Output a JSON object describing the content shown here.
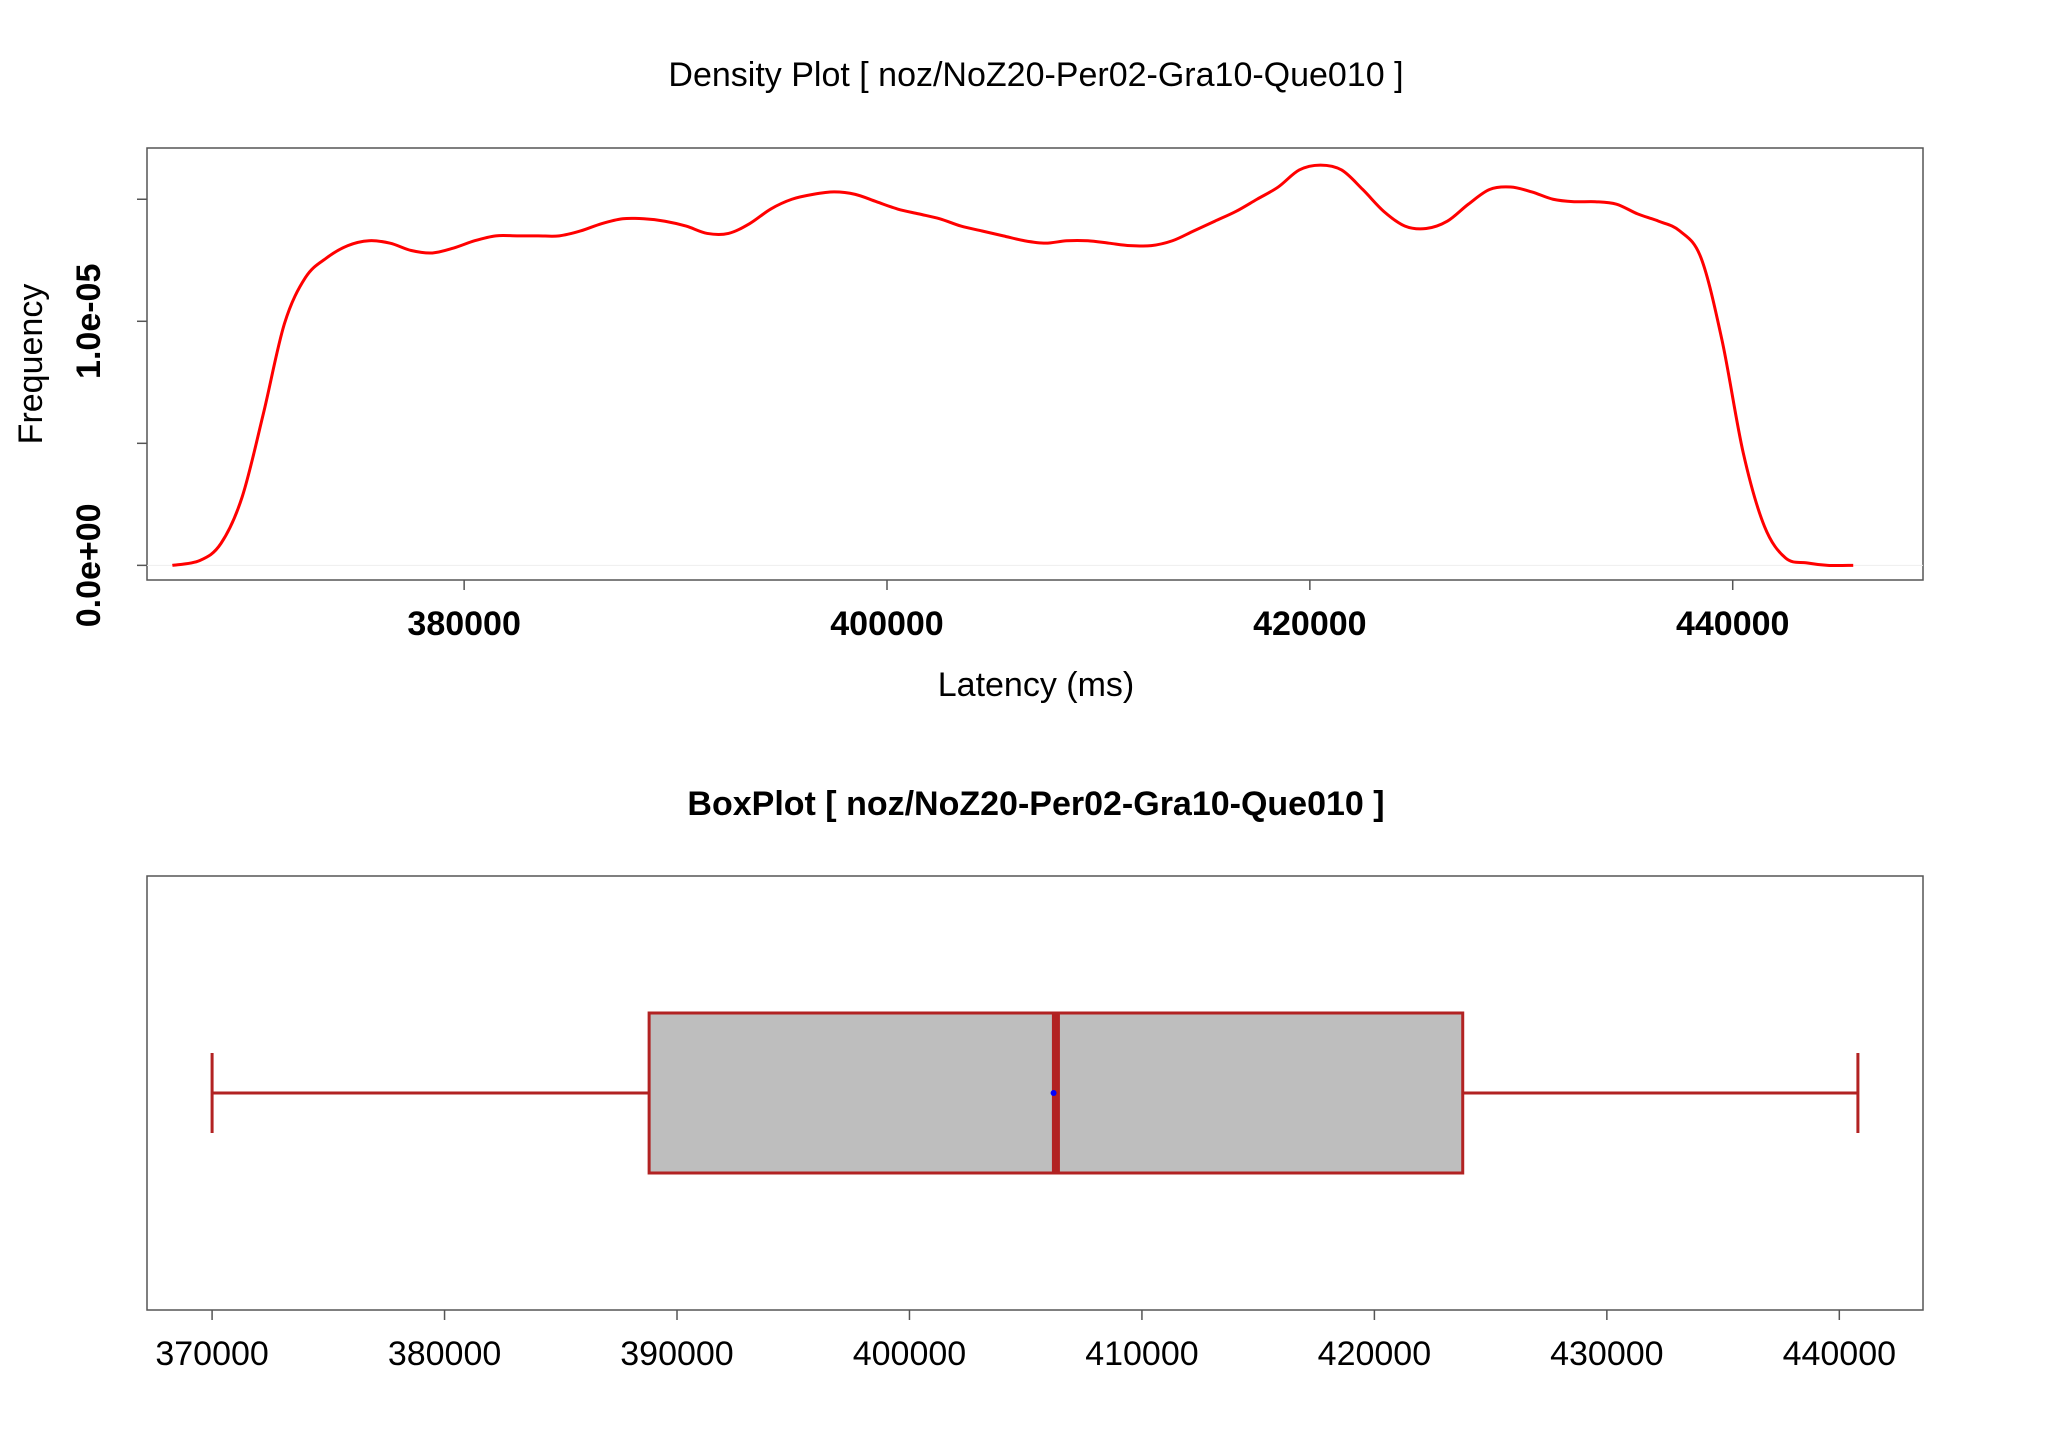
{
  "colors": {
    "density_line": "#ff0000",
    "box_stroke": "#b22222",
    "box_fill": "#bebebe",
    "mean_point": "#0000ff",
    "frame": "#555555"
  },
  "chart_data": [
    {
      "type": "line",
      "title": "Density Plot [ noz/NoZ20-Per02-Gra10-Que010 ]",
      "xlabel": "Latency (ms)",
      "ylabel": "Frequency",
      "xlim": [
        365000,
        449000
      ],
      "ylim": [
        -6e-07,
        1.71e-05
      ],
      "x_ticks": [
        380000,
        400000,
        420000,
        440000
      ],
      "x_tick_labels": [
        "380000",
        "400000",
        "420000",
        "440000"
      ],
      "y_ticks": [
        0,
        5e-06,
        1e-05,
        1.5e-05
      ],
      "y_tick_labels": [
        "0.0e+00",
        "",
        "1.0e-05",
        ""
      ],
      "grid": false,
      "series": [
        {
          "x": [
            366200,
            367500,
            368500,
            369500,
            370500,
            371500,
            372500,
            373500,
            374500,
            375500,
            376500,
            377500,
            378500,
            379500,
            380500,
            381500,
            382500,
            383500,
            384500,
            385500,
            386500,
            387500,
            388500,
            389500,
            390500,
            391500,
            392500,
            393500,
            394500,
            395500,
            396500,
            397500,
            398500,
            399500,
            400500,
            401500,
            402500,
            403500,
            404500,
            405500,
            406500,
            407500,
            408500,
            409500,
            410500,
            411500,
            412500,
            413500,
            414500,
            415500,
            416500,
            417500,
            418500,
            419500,
            420500,
            421500,
            422500,
            423500,
            424500,
            425500,
            426500,
            427500,
            428500,
            429500,
            430500,
            431500,
            432500,
            433500,
            434500,
            435500,
            436500,
            437500,
            438500,
            439500,
            440500,
            441500,
            442500,
            443500,
            444500,
            445700
          ],
          "y": [
            0,
            2e-07,
            9e-07,
            2.8e-06,
            6.2e-06,
            9.9e-06,
            1.18e-05,
            1.26e-05,
            1.31e-05,
            1.33e-05,
            1.32e-05,
            1.29e-05,
            1.28e-05,
            1.3e-05,
            1.33e-05,
            1.35e-05,
            1.35e-05,
            1.35e-05,
            1.35e-05,
            1.37e-05,
            1.4e-05,
            1.42e-05,
            1.42e-05,
            1.41e-05,
            1.39e-05,
            1.36e-05,
            1.36e-05,
            1.4e-05,
            1.46e-05,
            1.5e-05,
            1.52e-05,
            1.53e-05,
            1.52e-05,
            1.49e-05,
            1.46e-05,
            1.44e-05,
            1.42e-05,
            1.39e-05,
            1.37e-05,
            1.35e-05,
            1.33e-05,
            1.32e-05,
            1.33e-05,
            1.33e-05,
            1.32e-05,
            1.31e-05,
            1.31e-05,
            1.33e-05,
            1.37e-05,
            1.41e-05,
            1.45e-05,
            1.5e-05,
            1.55e-05,
            1.62e-05,
            1.64e-05,
            1.62e-05,
            1.54e-05,
            1.45e-05,
            1.39e-05,
            1.38e-05,
            1.41e-05,
            1.48e-05,
            1.54e-05,
            1.55e-05,
            1.53e-05,
            1.5e-05,
            1.49e-05,
            1.49e-05,
            1.48e-05,
            1.44e-05,
            1.41e-05,
            1.37e-05,
            1.26e-05,
            9.2e-06,
            4.6e-06,
            1.6e-06,
            3e-07,
            1e-07,
            0,
            0
          ]
        }
      ]
    },
    {
      "type": "box",
      "title": "BoxPlot [ noz/NoZ20-Per02-Gra10-Que010 ]",
      "xlim": [
        367200,
        443600
      ],
      "x_ticks": [
        370000,
        380000,
        390000,
        400000,
        410000,
        420000,
        430000,
        440000
      ],
      "x_tick_labels": [
        "370000",
        "380000",
        "390000",
        "400000",
        "410000",
        "420000",
        "430000",
        "440000"
      ],
      "grid": false,
      "min": 370000,
      "q1": 388800,
      "median": 406300,
      "mean": 406200,
      "q3": 423800,
      "max": 440800
    }
  ]
}
